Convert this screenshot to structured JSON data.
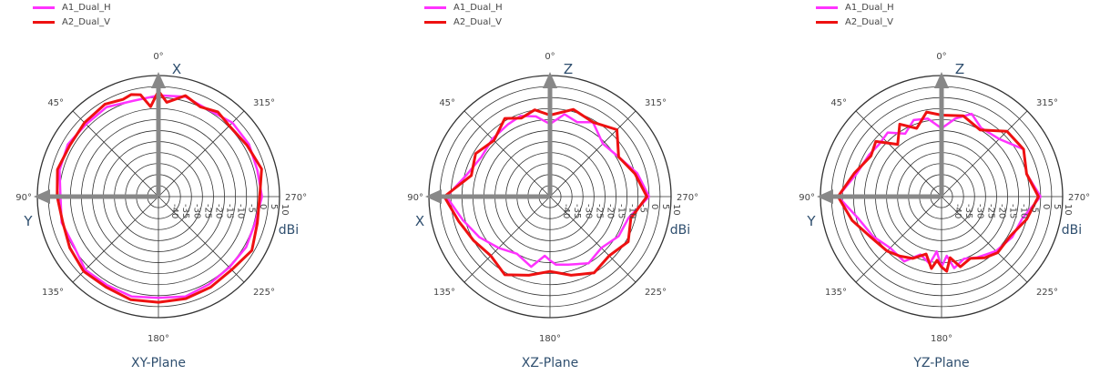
{
  "colors": {
    "A1_Dual_H": "#ff33ff",
    "A2_Dual_V": "#ee1111",
    "arrow": "#888888",
    "grid": "#333333"
  },
  "chart_data": [
    {
      "type": "polar",
      "title": "XY-Plane",
      "unit": "dBi",
      "radial_range": [
        -45,
        10
      ],
      "radial_ticks": [
        "-40",
        "-35",
        "-30",
        "-25",
        "-20",
        "-15",
        "-10",
        "-5",
        "0",
        "5",
        "10"
      ],
      "angle_labels": [
        "0°",
        "45°",
        "90°",
        "135°",
        "180°",
        "225°",
        "270°",
        "315°"
      ],
      "axis_up": "X",
      "axis_left": "Y",
      "angular_direction": "counterclockwise",
      "series": [
        {
          "name": "A1_Dual_H",
          "theta": [
            0,
            15,
            30,
            45,
            60,
            75,
            90,
            105,
            120,
            135,
            150,
            165,
            180,
            195,
            210,
            225,
            240,
            255,
            270,
            285,
            300,
            315,
            330,
            345
          ],
          "r": [
            1,
            0,
            2,
            1.5,
            2.5,
            1.5,
            -0.5,
            0.5,
            -0.5,
            2,
            1.5,
            2,
            1,
            2,
            1,
            0.5,
            1,
            0.5,
            2,
            1.5,
            2.5,
            2.5,
            0.5,
            2
          ]
        },
        {
          "name": "A2_Dual_V",
          "theta": [
            0,
            5,
            10,
            15,
            20,
            30,
            45,
            60,
            75,
            90,
            105,
            120,
            135,
            150,
            165,
            180,
            195,
            210,
            225,
            240,
            255,
            270,
            285,
            300,
            315,
            325,
            335,
            345,
            355
          ],
          "r": [
            3,
            -4,
            2,
            3,
            2,
            3.5,
            2.5,
            1.5,
            2.5,
            1,
            0,
            1.5,
            3,
            2.5,
            3.5,
            3,
            3,
            2.5,
            2,
            4,
            1.5,
            1,
            3.5,
            1.5,
            0.5,
            2,
            0,
            2.5,
            -2
          ]
        }
      ]
    },
    {
      "type": "polar",
      "title": "XZ-Plane",
      "unit": "dBi",
      "radial_range": [
        -45,
        10
      ],
      "radial_ticks": [
        "-40",
        "-35",
        "-30",
        "-25",
        "-20",
        "-15",
        "-10",
        "-5",
        "0",
        "5",
        "10"
      ],
      "angle_labels": [
        "0°",
        "45°",
        "90°",
        "135°",
        "180°",
        "225°",
        "270°",
        "315°"
      ],
      "axis_up": "Z",
      "axis_left": "X",
      "angular_direction": "counterclockwise",
      "series": [
        {
          "name": "A1_Dual_H",
          "theta": [
            0,
            10,
            20,
            30,
            45,
            60,
            75,
            90,
            105,
            120,
            135,
            150,
            165,
            175,
            180,
            185,
            195,
            210,
            225,
            240,
            255,
            270,
            285,
            300,
            315,
            330,
            340,
            350
          ],
          "r": [
            -12,
            -8,
            -6,
            -7,
            -8,
            -9,
            -6,
            2,
            -4,
            -8,
            -12,
            -15,
            -12,
            -18,
            -16,
            -14,
            -13,
            -10,
            -12,
            -9,
            -8,
            0,
            -4,
            -9,
            -11,
            -6,
            -9,
            -7
          ]
        },
        {
          "name": "A2_Dual_V",
          "theta": [
            0,
            10,
            20,
            30,
            45,
            60,
            75,
            90,
            105,
            120,
            135,
            150,
            165,
            180,
            195,
            210,
            225,
            240,
            255,
            270,
            285,
            300,
            315,
            330,
            345
          ],
          "r": [
            -8,
            -5,
            -7,
            -4,
            -9,
            -6,
            -8,
            3,
            -2,
            -5,
            -7,
            -4,
            -8,
            -11,
            -8,
            -5,
            -7,
            -4,
            -7,
            -1,
            -5,
            -9,
            -2,
            -6,
            -4
          ]
        }
      ]
    },
    {
      "type": "polar",
      "title": "YZ-Plane",
      "unit": "dBi",
      "radial_range": [
        -45,
        10
      ],
      "radial_ticks": [
        "-40",
        "-35",
        "-30",
        "-25",
        "-20",
        "-15",
        "-10",
        "-5",
        "0",
        "5",
        "10"
      ],
      "angle_labels": [
        "0°",
        "45°",
        "90°",
        "135°",
        "180°",
        "225°",
        "270°",
        "315°"
      ],
      "axis_up": "Z",
      "axis_left": "Y",
      "angular_direction": "counterclockwise",
      "series": [
        {
          "name": "A1_Dual_H",
          "theta": [
            0,
            10,
            20,
            30,
            40,
            50,
            60,
            75,
            90,
            105,
            120,
            135,
            150,
            160,
            170,
            175,
            180,
            185,
            190,
            200,
            210,
            225,
            240,
            255,
            270,
            285,
            300,
            315,
            330,
            340,
            350
          ],
          "r": [
            -14,
            -9,
            -8,
            -12,
            -7,
            -8,
            -7,
            -5,
            2,
            -6,
            -9,
            -12,
            -11,
            -17,
            -14,
            -20,
            -13,
            -18,
            -12,
            -15,
            -13,
            -10,
            -8,
            -7,
            0,
            -5,
            -2,
            -8,
            -9,
            -5,
            -9
          ]
        },
        {
          "name": "A2_Dual_V",
          "theta": [
            0,
            10,
            20,
            30,
            40,
            50,
            60,
            75,
            90,
            105,
            120,
            135,
            145,
            155,
            165,
            172,
            176,
            180,
            184,
            188,
            195,
            205,
            215,
            225,
            240,
            255,
            270,
            285,
            300,
            315,
            330,
            345
          ],
          "r": [
            -8,
            -6,
            -12,
            -7,
            -14,
            -6,
            -8,
            -4,
            2,
            -3,
            -8,
            -10,
            -12,
            -14,
            -18,
            -12,
            -16,
            -13,
            -11,
            -17,
            -12,
            -14,
            -11,
            -9,
            -9,
            -5,
            -1,
            -5,
            -2,
            -3,
            -10,
            -7
          ]
        }
      ]
    }
  ]
}
